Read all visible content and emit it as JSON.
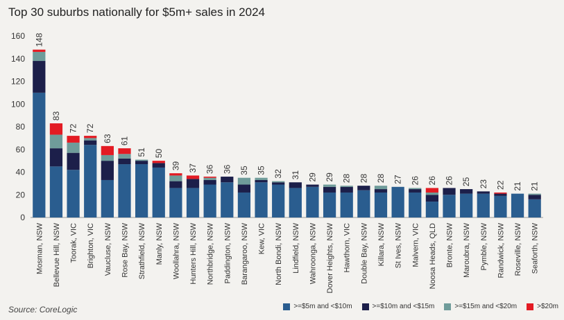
{
  "page": {
    "title": "Top 30 suburbs nationally for $5m+ sales in 2024",
    "source": "Source: CoreLogic"
  },
  "chart_data": {
    "type": "bar",
    "stacked": true,
    "title": "Top 30 suburbs nationally for $5m+ sales in 2024",
    "xlabel": "",
    "ylabel": "",
    "ylim": [
      0,
      160
    ],
    "yticks": [
      0,
      20,
      40,
      60,
      80,
      100,
      120,
      140,
      160
    ],
    "grid": false,
    "legend_position": "bottom-right",
    "categories": [
      "Mosman, NSW",
      "Bellevue Hill, NSW",
      "Toorak, VIC",
      "Brighton, VIC",
      "Vaucluse, NSW",
      "Rose Bay, NSW",
      "Strathfield, NSW",
      "Manly, NSW",
      "Woollahra, NSW",
      "Hunters Hill, NSW",
      "Northbridge, NSW",
      "Paddington, NSW",
      "Barangaroo, NSW",
      "Kew, VIC",
      "North Bondi, NSW",
      "Lindfield, NSW",
      "Wahroonga, NSW",
      "Dover Heights, NSW",
      "Hawthorn, VIC",
      "Double Bay, NSW",
      "Killara, NSW",
      "St Ives, NSW",
      "Malvern, VIC",
      "Noosa Heads, QLD",
      "Bronte, NSW",
      "Maroubra, NSW",
      "Pymble, NSW",
      "Randwick, NSW",
      "Roseville, NSW",
      "Seaforth, NSW"
    ],
    "totals": [
      "148",
      "83",
      "72",
      "72",
      "63",
      "61",
      "51",
      "50",
      "39",
      "37",
      "36",
      "36",
      "35",
      "35",
      "32",
      "31",
      "29",
      "29",
      "28",
      "28",
      "28",
      "27",
      "26",
      "26",
      "26",
      "25",
      "23",
      "22",
      "21",
      "21"
    ],
    "series": [
      {
        "name": ">=$5m and <$10m",
        "color": "#2a5d8f",
        "values": [
          110,
          45,
          42,
          64,
          33,
          47,
          47,
          44,
          26,
          26,
          29,
          31,
          22,
          31,
          29,
          26,
          27,
          22,
          22,
          24,
          22,
          27,
          22,
          14,
          20,
          21,
          21,
          19,
          21,
          16
        ]
      },
      {
        "name": ">=$10m and <$15m",
        "color": "#1c1f4a",
        "values": [
          28,
          16,
          15,
          4,
          17,
          5,
          3,
          4,
          6,
          8,
          4,
          5,
          7,
          2,
          2,
          5,
          2,
          5,
          5,
          4,
          3,
          0,
          3,
          6,
          6,
          4,
          2,
          2,
          0,
          4
        ]
      },
      {
        "name": ">=$15m and <$20m",
        "color": "#6f9c9a",
        "values": [
          8,
          12,
          9,
          2,
          5,
          4,
          1,
          0,
          5,
          0,
          2,
          0,
          6,
          2,
          1,
          0,
          0,
          2,
          1,
          0,
          3,
          0,
          1,
          2,
          0,
          0,
          0,
          0,
          0,
          1
        ]
      },
      {
        "name": ">$20m",
        "color": "#e31b23",
        "values": [
          2,
          10,
          6,
          2,
          8,
          5,
          0,
          2,
          2,
          3,
          1,
          0,
          0,
          0,
          0,
          0,
          0,
          0,
          0,
          0,
          0,
          0,
          0,
          4,
          0,
          0,
          0,
          1,
          0,
          0
        ]
      }
    ]
  }
}
